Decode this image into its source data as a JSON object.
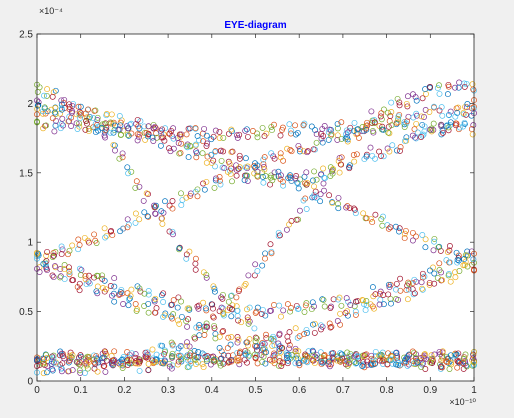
{
  "figure": {
    "background": "#f0f0f0",
    "axes_background": "#ffffff"
  },
  "chart_data": {
    "type": "scatter",
    "title": "EYE-diagram",
    "title_color": "#0000ff",
    "xlabel": "",
    "ylabel": "",
    "xlim": [
      0,
      1
    ],
    "ylim": [
      0,
      2.5
    ],
    "x_ticks": [
      0,
      0.1,
      0.2,
      0.3,
      0.4,
      0.5,
      0.6,
      0.7,
      0.8,
      0.9,
      1
    ],
    "x_tick_labels": [
      "0",
      "0.1",
      "0.2",
      "0.3",
      "0.4",
      "0.5",
      "0.6",
      "0.7",
      "0.8",
      "0.9",
      "1"
    ],
    "y_ticks": [
      0,
      0.5,
      1,
      1.5,
      2,
      2.5
    ],
    "y_tick_labels": [
      "0",
      "0.5",
      "1",
      "1.5",
      "2",
      "2.5"
    ],
    "x_exponent_label": "×10⁻¹⁰",
    "y_exponent_label": "×10⁻⁴",
    "grid": false,
    "legend": "none",
    "marker": "open-circle",
    "colors": [
      "#0072bd",
      "#d95319",
      "#edb120",
      "#7e2f8e",
      "#77ac30",
      "#4dbeee",
      "#a2142f"
    ],
    "series": [
      {
        "x": [
          0,
          0.125,
          0.25,
          0.375,
          0.5,
          0.625,
          0.75,
          0.875,
          1
        ],
        "values": [
          2.1,
          1.88,
          1.32,
          0.8,
          0.35,
          0.18,
          0.15,
          0.16,
          0.17
        ]
      },
      {
        "x": [
          0,
          0.125,
          0.25,
          0.375,
          0.5,
          0.625,
          0.75,
          0.875,
          1
        ],
        "values": [
          1.98,
          1.92,
          1.82,
          1.7,
          1.55,
          1.38,
          1.2,
          1.02,
          0.88
        ]
      },
      {
        "x": [
          0,
          0.125,
          0.25,
          0.375,
          0.5,
          0.625,
          0.75,
          0.875,
          1
        ],
        "values": [
          1.85,
          1.82,
          1.8,
          1.78,
          1.8,
          1.82,
          1.82,
          1.82,
          1.82
        ]
      },
      {
        "x": [
          0,
          0.125,
          0.25,
          0.375,
          0.5,
          0.625,
          0.75,
          0.875,
          1
        ],
        "values": [
          0.88,
          1.02,
          1.2,
          1.38,
          1.55,
          1.7,
          1.82,
          1.92,
          1.98
        ]
      },
      {
        "x": [
          0,
          0.125,
          0.25,
          0.375,
          0.5,
          0.625,
          0.75,
          0.875,
          1
        ],
        "values": [
          0.15,
          0.16,
          0.18,
          0.35,
          0.8,
          1.32,
          1.85,
          2.05,
          2.12
        ]
      },
      {
        "x": [
          0,
          0.125,
          0.25,
          0.375,
          0.5,
          0.625,
          0.75,
          0.875,
          1
        ],
        "values": [
          0.82,
          0.66,
          0.52,
          0.37,
          0.25,
          0.18,
          0.15,
          0.15,
          0.15
        ]
      },
      {
        "x": [
          0,
          0.125,
          0.25,
          0.375,
          0.5,
          0.625,
          0.75,
          0.875,
          1
        ],
        "values": [
          0.15,
          0.15,
          0.15,
          0.18,
          0.25,
          0.37,
          0.52,
          0.66,
          0.82
        ]
      },
      {
        "x": [
          0,
          0.125,
          0.25,
          0.375,
          0.5,
          0.625,
          0.75,
          0.875,
          1
        ],
        "values": [
          0.9,
          0.75,
          0.62,
          0.53,
          0.5,
          0.53,
          0.62,
          0.75,
          0.9
        ]
      },
      {
        "x": [
          0,
          0.125,
          0.25,
          0.375,
          0.5,
          0.625,
          0.75,
          0.875,
          1
        ],
        "values": [
          0.17,
          0.17,
          0.17,
          0.17,
          0.17,
          0.17,
          0.17,
          0.17,
          0.17
        ]
      },
      {
        "x": [
          0,
          0.125,
          0.25,
          0.375,
          0.5,
          0.625,
          0.75,
          0.875,
          1
        ],
        "values": [
          1.95,
          1.88,
          1.75,
          1.62,
          1.47,
          1.47,
          1.62,
          1.75,
          1.92
        ]
      },
      {
        "x": [
          0,
          0.125,
          0.25,
          0.375,
          0.5,
          0.625,
          0.75,
          0.875,
          1
        ],
        "values": [
          0.08,
          0.1,
          0.12,
          0.14,
          0.15,
          0.15,
          0.14,
          0.13,
          0.12
        ]
      }
    ]
  }
}
